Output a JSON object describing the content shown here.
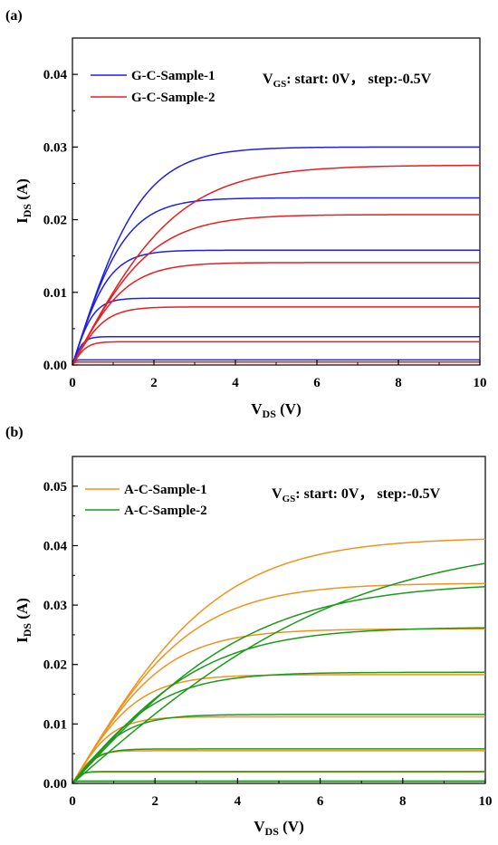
{
  "chart_data": [
    {
      "type": "line",
      "panel_label": "(a)",
      "xlabel_main": "V",
      "xlabel_sub": "DS",
      "xlabel_unit": " (V)",
      "ylabel_main": "I",
      "ylabel_sub": "DS",
      "ylabel_unit": " (A)",
      "xlim": [
        0,
        10
      ],
      "ylim": [
        0,
        0.045
      ],
      "xticks": [
        0,
        2,
        4,
        6,
        8,
        10
      ],
      "xtick_labels": [
        "0",
        "2",
        "4",
        "6",
        "8",
        "10"
      ],
      "yticks": [
        0,
        0.01,
        0.02,
        0.03,
        0.04
      ],
      "ytick_labels": [
        "0.00",
        "0.01",
        "0.02",
        "0.03",
        "0.04"
      ],
      "grid": false,
      "legend_position": "top-left",
      "annotation": {
        "main": "V",
        "sub": "GS",
        "rest": ": start: 0V，  step:-0.5V"
      },
      "series": [
        {
          "name": "G-C-Sample-1",
          "color": "#1f1fe6",
          "curves": [
            {
              "isat": 0.03,
              "k": 0.0175
            },
            {
              "isat": 0.023,
              "k": 0.0175
            },
            {
              "isat": 0.0158,
              "k": 0.0175
            },
            {
              "isat": 0.0092,
              "k": 0.0175
            },
            {
              "isat": 0.0039,
              "k": 0.015
            },
            {
              "isat": 0.0007,
              "k": 0.012
            }
          ]
        },
        {
          "name": "G-C-Sample-2",
          "color": "#e61f1f",
          "curves": [
            {
              "isat": 0.0275,
              "k": 0.0105
            },
            {
              "isat": 0.0207,
              "k": 0.0105
            },
            {
              "isat": 0.0141,
              "k": 0.0105
            },
            {
              "isat": 0.008,
              "k": 0.01
            },
            {
              "isat": 0.0032,
              "k": 0.009
            },
            {
              "isat": 0.0004,
              "k": 0.008
            }
          ]
        }
      ]
    },
    {
      "type": "line",
      "panel_label": "(b)",
      "xlabel_main": "V",
      "xlabel_sub": "DS",
      "xlabel_unit": " (V)",
      "ylabel_main": "I",
      "ylabel_sub": "DS",
      "ylabel_unit": " (A)",
      "xlim": [
        0,
        10
      ],
      "ylim": [
        0,
        0.055
      ],
      "xticks": [
        0,
        2,
        4,
        6,
        8,
        10
      ],
      "xtick_labels": [
        "0",
        "2",
        "4",
        "6",
        "8",
        "10"
      ],
      "yticks": [
        0,
        0.01,
        0.02,
        0.03,
        0.04,
        0.05
      ],
      "ytick_labels": [
        "0.00",
        "0.01",
        "0.02",
        "0.03",
        "0.04",
        "0.05"
      ],
      "grid": false,
      "legend_position": "top-left",
      "annotation": {
        "main": "V",
        "sub": "GS",
        "rest": ": start: 0V，  step:-0.5V"
      },
      "series": [
        {
          "name": "A-C-Sample-1",
          "color": "#f0921e",
          "curves": [
            {
              "isat": 0.0414,
              "k": 0.0115
            },
            {
              "isat": 0.0337,
              "k": 0.0115
            },
            {
              "isat": 0.026,
              "k": 0.0115
            },
            {
              "isat": 0.0183,
              "k": 0.0115
            },
            {
              "isat": 0.0112,
              "k": 0.0115
            },
            {
              "isat": 0.0055,
              "k": 0.011
            },
            {
              "isat": 0.0019,
              "k": 0.01
            },
            {
              "isat": 0.0003,
              "k": 0.009
            }
          ]
        },
        {
          "name": "A-C-Sample-2",
          "color": "#1a9a1a",
          "curves": [
            {
              "isat": 0.0413,
              "k": 0.006
            },
            {
              "isat": 0.0339,
              "k": 0.0075
            },
            {
              "isat": 0.0263,
              "k": 0.008
            },
            {
              "isat": 0.0187,
              "k": 0.0085
            },
            {
              "isat": 0.0116,
              "k": 0.009
            },
            {
              "isat": 0.0058,
              "k": 0.0095
            },
            {
              "isat": 0.002,
              "k": 0.009
            },
            {
              "isat": 0.0004,
              "k": 0.008
            }
          ]
        }
      ]
    }
  ]
}
